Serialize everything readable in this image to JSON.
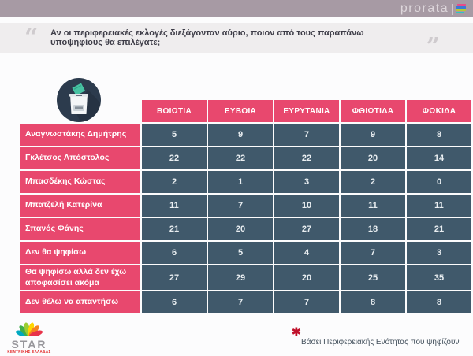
{
  "brand": {
    "logo_text": "prorata",
    "divider": "|",
    "stripe_colors": [
      "#e84b8a",
      "#3a7bd5",
      "#b8c832",
      "#2ec4c6"
    ]
  },
  "question": {
    "open_quote": "“",
    "close_quote": "”",
    "text": "Αν οι περιφερειακές εκλογές διεξάγονταν αύριο, ποιον από τους παραπάνω υποψηφίους θα επιλέγατε;"
  },
  "chart_data": {
    "type": "table",
    "columns": [
      "ΒΟΙΩΤΙΑ",
      "ΕΥΒΟΙΑ",
      "ΕΥΡΥΤΑΝΙΑ",
      "ΦΘΙΩΤΙΔΑ",
      "ΦΩΚΙΔΑ"
    ],
    "rows": [
      {
        "label": "Αναγνωστάκης Δημήτρης",
        "values": [
          5,
          9,
          7,
          9,
          8
        ]
      },
      {
        "label": "Γκλέτσος Απόστολος",
        "values": [
          22,
          22,
          22,
          20,
          14
        ]
      },
      {
        "label": "Μπασδέκης Κώστας",
        "values": [
          2,
          1,
          3,
          2,
          0
        ]
      },
      {
        "label": "Μπατζελή Κατερίνα",
        "values": [
          11,
          7,
          10,
          11,
          11
        ]
      },
      {
        "label": "Σπανός Φάνης",
        "values": [
          21,
          20,
          27,
          18,
          21
        ]
      },
      {
        "label": "Δεν θα ψηφίσω",
        "values": [
          6,
          5,
          4,
          7,
          3
        ]
      },
      {
        "label": "Θα ψηφίσω αλλά δεν έχω αποφασίσει ακόμα",
        "values": [
          27,
          29,
          20,
          25,
          35
        ]
      },
      {
        "label": "Δεν θέλω να απαντήσω",
        "values": [
          6,
          7,
          7,
          8,
          8
        ]
      }
    ],
    "colors": {
      "header_bg": "#e8486e",
      "label_bg": "#e8486e",
      "value_bg": "#40596b",
      "cell_text": "#ffffff",
      "accent_bar": "#a79aa4"
    }
  },
  "footer": {
    "station_logo_text": "STAR",
    "station_logo_subtext": "ΚΕΝΤΡΙΚΗΣ ΕΛΛΑΔΑΣ",
    "footnote_marker": "✱",
    "footnote_text": "Βάσει Περιφερειακής Ενότητας που ψηφίζουν"
  }
}
